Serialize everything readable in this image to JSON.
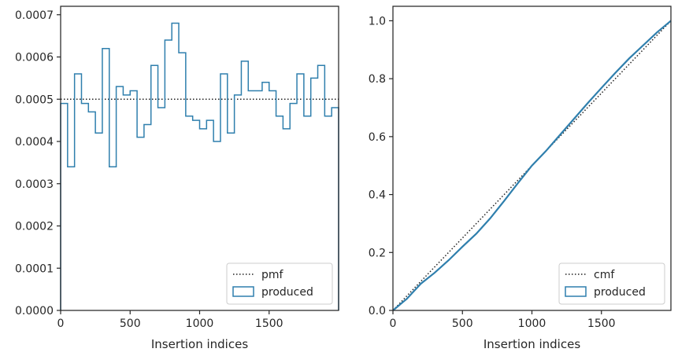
{
  "chart_data": [
    {
      "type": "histogram-step",
      "xlabel": "Insertion indices",
      "ylabel": "",
      "xlim": [
        0,
        2000
      ],
      "ylim": [
        0,
        0.00072
      ],
      "xticks": [
        0,
        500,
        1000,
        1500
      ],
      "xtick_labels": [
        "0",
        "500",
        "1000",
        "1500"
      ],
      "yticks": [
        0,
        0.0001,
        0.0002,
        0.0003,
        0.0004,
        0.0005,
        0.0006,
        0.0007
      ],
      "ytick_labels": [
        "0.0000",
        "0.0001",
        "0.0002",
        "0.0003",
        "0.0004",
        "0.0005",
        "0.0006",
        "0.0007"
      ],
      "legend_position": "lower-right",
      "series": [
        {
          "name": "pmf",
          "style": "dotted",
          "color": "#222222",
          "constant": 0.0005
        },
        {
          "name": "produced",
          "style": "step",
          "color": "#2f7fad",
          "bin_edges": [
            0,
            50,
            100,
            150,
            200,
            250,
            300,
            350,
            400,
            450,
            500,
            550,
            600,
            650,
            700,
            750,
            800,
            850,
            900,
            950,
            1000,
            1050,
            1100,
            1150,
            1200,
            1250,
            1300,
            1350,
            1400,
            1450,
            1500,
            1550,
            1600,
            1650,
            1700,
            1750,
            1800,
            1850,
            1900,
            1950,
            2000
          ],
          "values": [
            0.00049,
            0.00034,
            0.00056,
            0.00049,
            0.00047,
            0.00042,
            0.00062,
            0.00034,
            0.00053,
            0.00051,
            0.00052,
            0.00041,
            0.00044,
            0.00058,
            0.00048,
            0.00064,
            0.00068,
            0.00061,
            0.00046,
            0.00045,
            0.00043,
            0.00045,
            0.0004,
            0.00056,
            0.00042,
            0.00051,
            0.00059,
            0.00052,
            0.00052,
            0.00054,
            0.00052,
            0.00046,
            0.00043,
            0.00049,
            0.00056,
            0.00046,
            0.00055,
            0.00058,
            0.00046,
            0.00048
          ]
        }
      ]
    },
    {
      "type": "line",
      "xlabel": "Insertion indices",
      "ylabel": "",
      "xlim": [
        0,
        2000
      ],
      "ylim": [
        0,
        1.05
      ],
      "xticks": [
        0,
        500,
        1000,
        1500
      ],
      "xtick_labels": [
        "0",
        "500",
        "1000",
        "1500"
      ],
      "yticks": [
        0,
        0.2,
        0.4,
        0.6,
        0.8,
        1.0
      ],
      "ytick_labels": [
        "0.0",
        "0.2",
        "0.4",
        "0.6",
        "0.8",
        "1.0"
      ],
      "legend_position": "lower-right",
      "series": [
        {
          "name": "cmf",
          "style": "dotted",
          "color": "#222222",
          "x": [
            0,
            2000
          ],
          "y": [
            0,
            1.0
          ]
        },
        {
          "name": "produced",
          "style": "step",
          "color": "#2f7fad",
          "x": [
            0,
            100,
            200,
            300,
            400,
            500,
            600,
            700,
            800,
            900,
            1000,
            1100,
            1200,
            1300,
            1400,
            1500,
            1600,
            1700,
            1800,
            1900,
            2000
          ],
          "y": [
            0,
            0.04,
            0.092,
            0.13,
            0.173,
            0.22,
            0.265,
            0.318,
            0.378,
            0.44,
            0.5,
            0.55,
            0.605,
            0.66,
            0.715,
            0.768,
            0.82,
            0.87,
            0.915,
            0.96,
            1.0
          ]
        }
      ]
    }
  ]
}
